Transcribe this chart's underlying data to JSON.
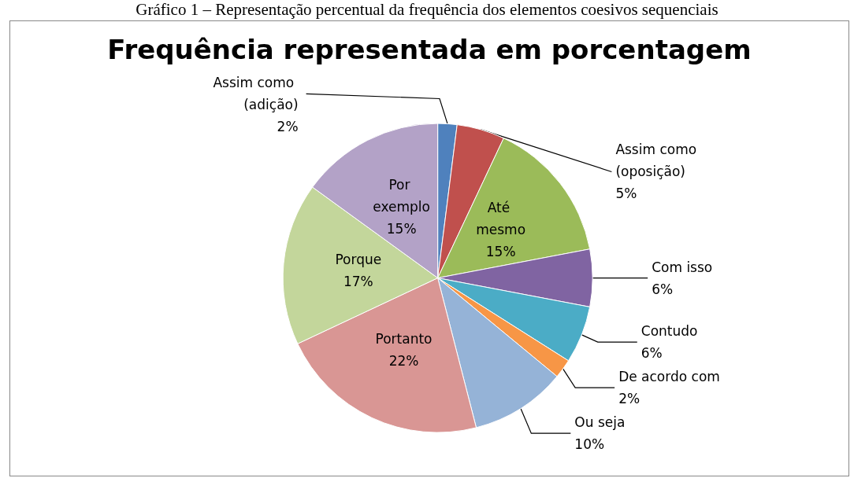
{
  "chart_data": {
    "type": "pie",
    "title": "Frequência representada em porcentagem",
    "annotations": [
      "Gráfico 1 – Representação percentual da frequência dos elementos coesivos sequenciais"
    ],
    "categories": [
      "Assim como (adição)",
      "Assim como (oposição)",
      "Até mesmo",
      "Com isso",
      "Contudo",
      "De acordo com",
      "Ou seja",
      "Portanto",
      "Porque",
      "Por exemplo"
    ],
    "values": [
      2,
      5,
      15,
      6,
      6,
      2,
      10,
      22,
      17,
      15
    ],
    "colors": [
      "#4f81bd",
      "#c0504d",
      "#9bbb59",
      "#8064a2",
      "#4bacc6",
      "#f79646",
      "#95b3d7",
      "#d99694",
      "#c3d69b",
      "#b3a2c7"
    ],
    "value_labels": [
      "2%",
      "5%",
      "15%",
      "6%",
      "6%",
      "2%",
      "10%",
      "22%",
      "17%",
      "15%"
    ],
    "legend": false
  }
}
